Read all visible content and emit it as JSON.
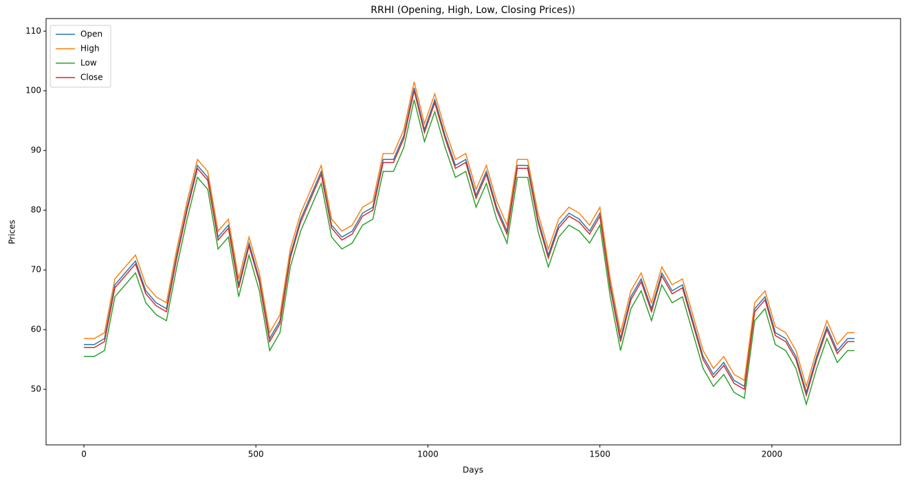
{
  "chart_data": {
    "type": "line",
    "title": "RRHI (Opening, High, Low, Closing Prices))",
    "xlabel": "Days",
    "ylabel": "Prices",
    "x": [
      0,
      30,
      60,
      90,
      120,
      150,
      180,
      210,
      240,
      270,
      300,
      330,
      360,
      390,
      420,
      450,
      480,
      510,
      540,
      570,
      600,
      630,
      660,
      690,
      720,
      750,
      780,
      810,
      840,
      870,
      900,
      930,
      960,
      990,
      1020,
      1050,
      1080,
      1110,
      1140,
      1170,
      1200,
      1230,
      1260,
      1290,
      1320,
      1350,
      1380,
      1410,
      1440,
      1470,
      1500,
      1530,
      1560,
      1590,
      1620,
      1650,
      1680,
      1710,
      1740,
      1770,
      1800,
      1830,
      1860,
      1890,
      1920,
      1950,
      1980,
      2010,
      2040,
      2070,
      2100,
      2130,
      2160,
      2190,
      2220,
      2240
    ],
    "series": [
      {
        "name": "Open",
        "color": "#1f77b4",
        "values": [
          57.5,
          57.5,
          58.5,
          67.5,
          69.5,
          71.5,
          66.5,
          64.5,
          63.5,
          72.5,
          80.5,
          87.5,
          85.5,
          75.5,
          77.5,
          67.5,
          74.5,
          68.5,
          58.5,
          61.5,
          72.5,
          78.5,
          82.5,
          86.5,
          77.5,
          75.5,
          76.5,
          79.5,
          80.5,
          88.5,
          88.5,
          92.5,
          100.5,
          93.5,
          98.5,
          92.5,
          87.5,
          88.5,
          82.5,
          86.5,
          80.5,
          76.5,
          87.5,
          87.5,
          78.5,
          72.5,
          77.5,
          79.5,
          78.5,
          76.5,
          79.5,
          67.5,
          58.5,
          65.5,
          68.5,
          63.5,
          69.5,
          66.5,
          67.5,
          61.5,
          55.5,
          52.5,
          54.5,
          51.5,
          50.5,
          63.5,
          65.5,
          59.5,
          58.5,
          55.5,
          49.5,
          55.5,
          60.5,
          56.5,
          58.5,
          58.5
        ]
      },
      {
        "name": "High",
        "color": "#ff7f0e",
        "values": [
          58.5,
          58.5,
          59.5,
          68.5,
          70.5,
          72.5,
          67.5,
          65.5,
          64.5,
          73.5,
          81.5,
          88.5,
          86.5,
          76.5,
          78.5,
          68.5,
          75.5,
          69.5,
          59.5,
          62.5,
          73.5,
          79.5,
          83.5,
          87.5,
          78.5,
          76.5,
          77.5,
          80.5,
          81.5,
          89.5,
          89.5,
          93.5,
          101.5,
          94.5,
          99.5,
          93.5,
          88.5,
          89.5,
          83.5,
          87.5,
          81.5,
          77.5,
          88.5,
          88.5,
          79.5,
          73.5,
          78.5,
          80.5,
          79.5,
          77.5,
          80.5,
          68.5,
          59.5,
          66.5,
          69.5,
          64.5,
          70.5,
          67.5,
          68.5,
          62.5,
          56.5,
          53.5,
          55.5,
          52.5,
          51.5,
          64.5,
          66.5,
          60.5,
          59.5,
          56.5,
          50.5,
          56.5,
          61.5,
          57.5,
          59.5,
          59.5
        ]
      },
      {
        "name": "Low",
        "color": "#2ca02c",
        "values": [
          55.5,
          55.5,
          56.5,
          65.5,
          67.5,
          69.5,
          64.5,
          62.5,
          61.5,
          70.5,
          78.5,
          85.5,
          83.5,
          73.5,
          75.5,
          65.5,
          72.5,
          66.5,
          56.5,
          59.5,
          70.5,
          76.5,
          80.5,
          84.5,
          75.5,
          73.5,
          74.5,
          77.5,
          78.5,
          86.5,
          86.5,
          90.5,
          98.5,
          91.5,
          96.5,
          90.5,
          85.5,
          86.5,
          80.5,
          84.5,
          78.5,
          74.5,
          85.5,
          85.5,
          76.5,
          70.5,
          75.5,
          77.5,
          76.5,
          74.5,
          77.5,
          65.5,
          56.5,
          63.5,
          66.5,
          61.5,
          67.5,
          64.5,
          65.5,
          59.5,
          53.5,
          50.5,
          52.5,
          49.5,
          48.5,
          61.5,
          63.5,
          57.5,
          56.5,
          53.5,
          47.5,
          53.5,
          58.5,
          54.5,
          56.5,
          56.5
        ]
      },
      {
        "name": "Close",
        "color": "#d62728",
        "values": [
          57,
          57,
          58,
          67,
          69,
          71,
          66,
          64,
          63,
          72,
          80,
          87,
          85,
          75,
          77,
          67,
          74,
          68,
          58,
          61,
          72,
          78,
          82,
          86,
          77,
          75,
          76,
          79,
          80,
          88,
          88,
          92,
          100,
          93,
          98,
          92,
          87,
          88,
          82,
          86,
          80,
          76,
          87,
          87,
          78,
          72,
          77,
          79,
          78,
          76,
          79,
          67,
          58,
          65,
          68,
          63,
          69,
          66,
          67,
          61,
          55,
          52,
          54,
          51,
          50,
          63,
          65,
          59,
          58,
          55,
          49,
          55,
          60,
          56,
          58,
          58
        ]
      }
    ],
    "xlim": [
      -110,
      2374
    ],
    "ylim": [
      40.7,
      112.1
    ],
    "xticks": [
      0,
      500,
      1000,
      1500,
      2000
    ],
    "yticks": [
      50,
      60,
      70,
      80,
      90,
      100,
      110
    ],
    "legend": "upper left"
  }
}
